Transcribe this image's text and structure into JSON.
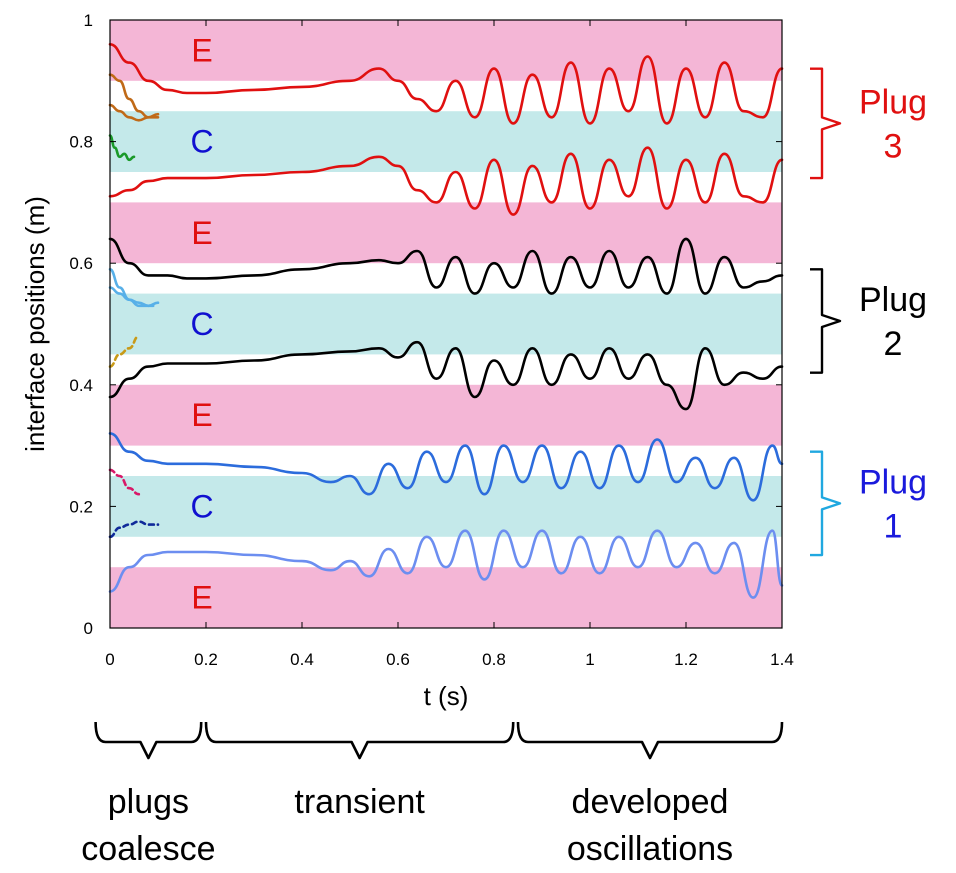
{
  "chart_data": {
    "type": "line",
    "title": "",
    "xlabel": "t (s)",
    "ylabel": "interface positions (m)",
    "xlim": [
      0,
      1.4
    ],
    "ylim": [
      0,
      1
    ],
    "x_ticks": [
      "0",
      "0.2",
      "0.4",
      "0.6",
      "0.8",
      "1",
      "1.2",
      "1.4"
    ],
    "y_ticks": [
      "0",
      "0.2",
      "0.4",
      "0.6",
      "0.8",
      "1"
    ],
    "bands": [
      {
        "label": "E",
        "from": 0.0,
        "to": 0.1,
        "color": "#f4b6d6"
      },
      {
        "label": "C",
        "from": 0.15,
        "to": 0.25,
        "color": "#c4e9ea"
      },
      {
        "label": "E",
        "from": 0.3,
        "to": 0.4,
        "color": "#f4b6d6"
      },
      {
        "label": "C",
        "from": 0.45,
        "to": 0.55,
        "color": "#c4e9ea"
      },
      {
        "label": "E",
        "from": 0.6,
        "to": 0.7,
        "color": "#f4b6d6"
      },
      {
        "label": "C",
        "from": 0.75,
        "to": 0.85,
        "color": "#c4e9ea"
      },
      {
        "label": "E",
        "from": 0.9,
        "to": 1.0,
        "color": "#f4b6d6"
      }
    ],
    "band_label_color": "#e01010",
    "c_label_color": "#1010d0",
    "series": [
      {
        "name": "Plug 3 upper interface",
        "color": "#e01010",
        "x": [
          0,
          0.04,
          0.08,
          0.12,
          0.16,
          0.2,
          0.3,
          0.4,
          0.5,
          0.56,
          0.6,
          0.64,
          0.68,
          0.72,
          0.76,
          0.8,
          0.84,
          0.88,
          0.92,
          0.96,
          1.0,
          1.04,
          1.08,
          1.12,
          1.16,
          1.2,
          1.24,
          1.28,
          1.32,
          1.36,
          1.4
        ],
        "y": [
          0.96,
          0.93,
          0.9,
          0.885,
          0.88,
          0.88,
          0.885,
          0.89,
          0.9,
          0.92,
          0.9,
          0.87,
          0.85,
          0.9,
          0.84,
          0.92,
          0.83,
          0.91,
          0.84,
          0.93,
          0.83,
          0.92,
          0.85,
          0.94,
          0.83,
          0.92,
          0.84,
          0.93,
          0.85,
          0.84,
          0.92
        ]
      },
      {
        "name": "Plug 3 lower interface",
        "color": "#e01010",
        "x": [
          0,
          0.04,
          0.08,
          0.12,
          0.16,
          0.2,
          0.3,
          0.4,
          0.5,
          0.56,
          0.6,
          0.64,
          0.68,
          0.72,
          0.76,
          0.8,
          0.84,
          0.88,
          0.92,
          0.96,
          1.0,
          1.04,
          1.08,
          1.12,
          1.16,
          1.2,
          1.24,
          1.28,
          1.32,
          1.36,
          1.4
        ],
        "y": [
          0.71,
          0.72,
          0.735,
          0.74,
          0.74,
          0.74,
          0.745,
          0.75,
          0.76,
          0.775,
          0.76,
          0.72,
          0.7,
          0.75,
          0.69,
          0.77,
          0.68,
          0.76,
          0.7,
          0.78,
          0.69,
          0.77,
          0.71,
          0.79,
          0.69,
          0.77,
          0.7,
          0.78,
          0.71,
          0.7,
          0.77
        ]
      },
      {
        "name": "Plug 2 upper interface",
        "color": "#000000",
        "x": [
          0,
          0.04,
          0.08,
          0.12,
          0.16,
          0.2,
          0.3,
          0.4,
          0.5,
          0.56,
          0.6,
          0.64,
          0.68,
          0.72,
          0.76,
          0.8,
          0.84,
          0.88,
          0.92,
          0.96,
          1.0,
          1.04,
          1.08,
          1.12,
          1.16,
          1.2,
          1.24,
          1.28,
          1.32,
          1.36,
          1.4
        ],
        "y": [
          0.64,
          0.6,
          0.58,
          0.58,
          0.575,
          0.575,
          0.58,
          0.59,
          0.6,
          0.605,
          0.6,
          0.62,
          0.56,
          0.61,
          0.55,
          0.6,
          0.56,
          0.62,
          0.55,
          0.61,
          0.56,
          0.62,
          0.56,
          0.61,
          0.55,
          0.64,
          0.55,
          0.61,
          0.56,
          0.57,
          0.58
        ]
      },
      {
        "name": "Plug 2 lower interface",
        "color": "#000000",
        "x": [
          0,
          0.04,
          0.08,
          0.12,
          0.16,
          0.2,
          0.3,
          0.4,
          0.5,
          0.56,
          0.6,
          0.64,
          0.68,
          0.72,
          0.76,
          0.8,
          0.84,
          0.88,
          0.92,
          0.96,
          1.0,
          1.04,
          1.08,
          1.12,
          1.16,
          1.2,
          1.24,
          1.28,
          1.32,
          1.36,
          1.4
        ],
        "y": [
          0.38,
          0.41,
          0.43,
          0.435,
          0.435,
          0.435,
          0.44,
          0.45,
          0.455,
          0.46,
          0.445,
          0.47,
          0.41,
          0.46,
          0.38,
          0.44,
          0.4,
          0.46,
          0.4,
          0.45,
          0.41,
          0.46,
          0.41,
          0.45,
          0.4,
          0.36,
          0.46,
          0.4,
          0.42,
          0.41,
          0.43
        ]
      },
      {
        "name": "Plug 1 upper interface",
        "color": "#2c6cdc",
        "x": [
          0,
          0.04,
          0.08,
          0.12,
          0.16,
          0.2,
          0.3,
          0.4,
          0.46,
          0.5,
          0.54,
          0.58,
          0.62,
          0.66,
          0.7,
          0.74,
          0.78,
          0.82,
          0.86,
          0.9,
          0.94,
          0.98,
          1.02,
          1.06,
          1.1,
          1.14,
          1.18,
          1.22,
          1.26,
          1.3,
          1.34,
          1.38,
          1.4
        ],
        "y": [
          0.32,
          0.29,
          0.275,
          0.27,
          0.27,
          0.27,
          0.265,
          0.255,
          0.24,
          0.25,
          0.22,
          0.27,
          0.23,
          0.29,
          0.24,
          0.3,
          0.22,
          0.3,
          0.24,
          0.3,
          0.23,
          0.29,
          0.23,
          0.3,
          0.24,
          0.31,
          0.24,
          0.28,
          0.23,
          0.28,
          0.21,
          0.3,
          0.27
        ]
      },
      {
        "name": "Plug 1 lower interface",
        "color": "#6c8ef0",
        "x": [
          0,
          0.04,
          0.08,
          0.12,
          0.16,
          0.2,
          0.3,
          0.4,
          0.46,
          0.5,
          0.54,
          0.58,
          0.62,
          0.66,
          0.7,
          0.74,
          0.78,
          0.82,
          0.86,
          0.9,
          0.94,
          0.98,
          1.02,
          1.06,
          1.1,
          1.14,
          1.18,
          1.22,
          1.26,
          1.3,
          1.34,
          1.38,
          1.4
        ],
        "y": [
          0.06,
          0.1,
          0.12,
          0.125,
          0.125,
          0.125,
          0.12,
          0.11,
          0.095,
          0.11,
          0.085,
          0.13,
          0.09,
          0.15,
          0.1,
          0.16,
          0.08,
          0.16,
          0.1,
          0.16,
          0.09,
          0.15,
          0.09,
          0.15,
          0.1,
          0.16,
          0.1,
          0.14,
          0.09,
          0.14,
          0.05,
          0.16,
          0.07
        ]
      },
      {
        "name": "Initial plug (brown) upper",
        "color": "#c06a18",
        "x": [
          0,
          0.02,
          0.04,
          0.06,
          0.08,
          0.1
        ],
        "y": [
          0.91,
          0.9,
          0.87,
          0.85,
          0.84,
          0.84
        ]
      },
      {
        "name": "Initial plug (brown) lower",
        "color": "#c06a18",
        "x": [
          0,
          0.02,
          0.04,
          0.06,
          0.08,
          0.1
        ],
        "y": [
          0.86,
          0.85,
          0.84,
          0.835,
          0.84,
          0.845
        ]
      },
      {
        "name": "Initial plug (green)",
        "color": "#1a9a2a",
        "x": [
          0,
          0.01,
          0.02,
          0.03,
          0.04,
          0.05
        ],
        "y": [
          0.81,
          0.79,
          0.775,
          0.78,
          0.77,
          0.775
        ]
      },
      {
        "name": "Initial plug (light blue) upper",
        "color": "#58b0e8",
        "x": [
          0,
          0.02,
          0.04,
          0.06,
          0.08,
          0.1
        ],
        "y": [
          0.59,
          0.56,
          0.54,
          0.53,
          0.53,
          0.535
        ]
      },
      {
        "name": "Initial plug (light blue) lower",
        "color": "#58b0e8",
        "x": [
          0,
          0.02,
          0.04,
          0.06,
          0.08,
          0.09
        ],
        "y": [
          0.56,
          0.55,
          0.54,
          0.535,
          0.53,
          0.53
        ]
      },
      {
        "name": "Initial plug (gold, dashed)",
        "color": "#c89a18",
        "dashed": true,
        "x": [
          0,
          0.02,
          0.04,
          0.06
        ],
        "y": [
          0.43,
          0.45,
          0.46,
          0.48
        ]
      },
      {
        "name": "Initial plug (pink, dashed)",
        "color": "#d81868",
        "dashed": true,
        "x": [
          0,
          0.02,
          0.04,
          0.06
        ],
        "y": [
          0.26,
          0.25,
          0.23,
          0.22
        ]
      },
      {
        "name": "Initial plug (navy, dashed)",
        "color": "#102a9a",
        "dashed": true,
        "x": [
          0,
          0.02,
          0.04,
          0.06,
          0.08,
          0.1
        ],
        "y": [
          0.15,
          0.165,
          0.17,
          0.175,
          0.17,
          0.17
        ]
      }
    ],
    "plug_annotations": [
      {
        "label_line1": "Plug",
        "label_line2": "3",
        "from": 0.74,
        "to": 0.92,
        "color": "#e01010"
      },
      {
        "label_line1": "Plug",
        "label_line2": "2",
        "from": 0.42,
        "to": 0.59,
        "color": "#000000"
      },
      {
        "label_line1": "Plug",
        "label_line2": "1",
        "from": 0.12,
        "to": 0.29,
        "color": "#1a1adc",
        "bracket_color": "#20a8e0"
      }
    ],
    "phases": [
      {
        "label_line1": "plugs",
        "label_line2": "coalesce",
        "from": -0.03,
        "to": 0.19
      },
      {
        "label_line1": "transient",
        "label_line2": "",
        "from": 0.2,
        "to": 0.84
      },
      {
        "label_line1": "developed",
        "label_line2": "oscillations",
        "from": 0.85,
        "to": 1.4
      }
    ]
  }
}
